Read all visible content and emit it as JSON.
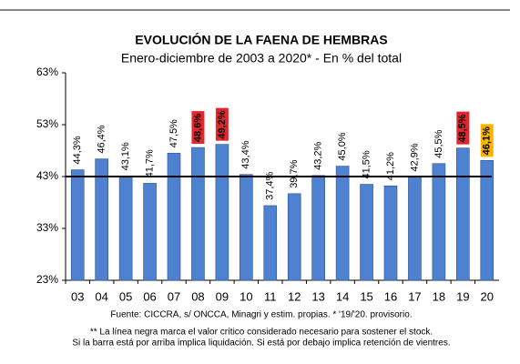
{
  "chart_data": {
    "type": "bar",
    "title": "EVOLUCIÓN DE LA FAENA DE HEMBRAS",
    "subtitle": "Enero-diciembre de 2003 a 2020* - En % del total",
    "categories": [
      "03",
      "04",
      "05",
      "06",
      "07",
      "08",
      "09",
      "10",
      "11",
      "12",
      "13",
      "14",
      "15",
      "16",
      "17",
      "18",
      "19",
      "20"
    ],
    "values": [
      44.3,
      46.4,
      43.1,
      41.7,
      47.5,
      48.6,
      49.2,
      43.4,
      37.4,
      39.7,
      43.2,
      45.0,
      41.5,
      41.2,
      42.9,
      45.5,
      48.5,
      46.1
    ],
    "value_labels": [
      "44,3%",
      "46,4%",
      "43,1%",
      "41,7%",
      "47,5%",
      "48,6%",
      "49,2%",
      "43,4%",
      "37,4%",
      "39,7%",
      "43,2%",
      "45,0%",
      "41,5%",
      "41,2%",
      "42,9%",
      "45,5%",
      "48,5%",
      "46,1%"
    ],
    "label_highlights": [
      null,
      null,
      null,
      null,
      null,
      "#e3262c",
      "#e3262c",
      null,
      null,
      null,
      null,
      null,
      null,
      null,
      null,
      null,
      "#e3262c",
      "#f7b500"
    ],
    "color": "#4f81d1",
    "reference_line": 43,
    "ylim": [
      23,
      63
    ],
    "yticks": [
      {
        "value": 23,
        "label": "23%"
      },
      {
        "value": 33,
        "label": "33%"
      },
      {
        "value": 43,
        "label": "43%"
      },
      {
        "value": 53,
        "label": "53%"
      },
      {
        "value": 63,
        "label": "63%"
      }
    ],
    "notes": [
      "Fuente: CICCRA, s/ ONCCA, Minagri y estim. propias. * '19/'20. provisorio.",
      "** La línea negra marca el valor crítico considerado necesario para sostener el stock.",
      "Si la barra está por arriba implica liquidación. Si está por debajo implica retención de vientres."
    ]
  }
}
